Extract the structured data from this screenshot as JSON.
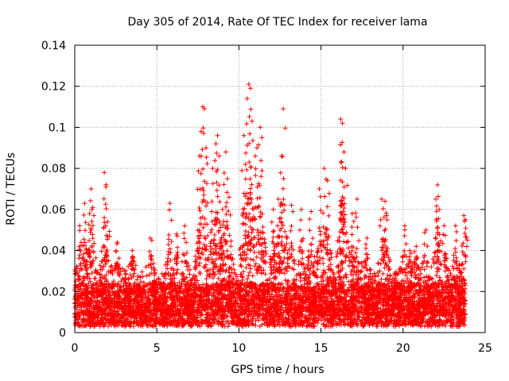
{
  "chart_data": {
    "type": "scatter",
    "title": "Day 305 of 2014, Rate Of TEC Index for receiver lama",
    "xlabel": "GPS time / hours",
    "ylabel": "ROTI / TECUs",
    "xlim": [
      0,
      25
    ],
    "ylim": [
      0,
      0.14
    ],
    "x_ticks": [
      "0",
      "5",
      "10",
      "15",
      "20",
      "25"
    ],
    "y_ticks": [
      "0",
      "0.02",
      "0.04",
      "0.06",
      "0.08",
      "0.1",
      "0.12",
      "0.14"
    ],
    "grid": true,
    "marker": "+",
    "color": "#ff0000",
    "series": [
      {
        "name": "ROTI",
        "description": "Dense cloud of per-satellite ROTI samples (~0.005–0.03 TECU/s) spanning 0–23.8 h; listed points are the distinctly visible outliers",
        "baseline_range": [
          0.004,
          0.03
        ],
        "x_range": [
          0,
          23.8
        ],
        "points": [
          [
            1.8,
            0.078
          ],
          [
            1.9,
            0.071
          ],
          [
            1.0,
            0.07
          ],
          [
            1.1,
            0.061
          ],
          [
            0.6,
            0.063
          ],
          [
            0.9,
            0.058
          ],
          [
            0.3,
            0.052
          ],
          [
            2.0,
            0.054
          ],
          [
            5.8,
            0.063
          ],
          [
            4.6,
            0.046
          ],
          [
            6.7,
            0.052
          ],
          [
            7.6,
            0.086
          ],
          [
            7.7,
            0.098
          ],
          [
            7.8,
            0.11
          ],
          [
            7.9,
            0.109
          ],
          [
            8.0,
            0.09
          ],
          [
            8.4,
            0.08
          ],
          [
            8.6,
            0.092
          ],
          [
            8.7,
            0.096
          ],
          [
            8.8,
            0.086
          ],
          [
            9.2,
            0.088
          ],
          [
            9.3,
            0.075
          ],
          [
            9.4,
            0.066
          ],
          [
            9.0,
            0.06
          ],
          [
            10.3,
            0.096
          ],
          [
            10.5,
            0.114
          ],
          [
            10.6,
            0.121
          ],
          [
            10.7,
            0.119
          ],
          [
            10.8,
            0.103
          ],
          [
            11.1,
            0.09
          ],
          [
            11.3,
            0.1
          ],
          [
            11.4,
            0.095
          ],
          [
            11.0,
            0.086
          ],
          [
            10.4,
            0.082
          ],
          [
            12.1,
            0.06
          ],
          [
            12.7,
            0.109
          ],
          [
            12.6,
            0.086
          ],
          [
            12.4,
            0.065
          ],
          [
            13.2,
            0.062
          ],
          [
            13.8,
            0.06
          ],
          [
            14.4,
            0.059
          ],
          [
            14.9,
            0.07
          ],
          [
            15.2,
            0.08
          ],
          [
            15.4,
            0.074
          ],
          [
            16.2,
            0.104
          ],
          [
            16.3,
            0.102
          ],
          [
            16.4,
            0.088
          ],
          [
            16.5,
            0.08
          ],
          [
            16.2,
            0.064
          ],
          [
            16.9,
            0.058
          ],
          [
            17.2,
            0.065
          ],
          [
            18.7,
            0.065
          ],
          [
            18.9,
            0.064
          ],
          [
            19.0,
            0.057
          ],
          [
            20.1,
            0.052
          ],
          [
            20.8,
            0.042
          ],
          [
            21.4,
            0.05
          ],
          [
            22.1,
            0.072
          ],
          [
            22.0,
            0.065
          ],
          [
            22.2,
            0.06
          ],
          [
            22.5,
            0.052
          ],
          [
            23.2,
            0.052
          ],
          [
            23.7,
            0.057
          ],
          [
            23.8,
            0.055
          ],
          [
            2.6,
            0.044
          ],
          [
            3.5,
            0.04
          ],
          [
            6.2,
            0.048
          ],
          [
            12.9,
            0.047
          ],
          [
            17.8,
            0.046
          ],
          [
            20.4,
            0.04
          ]
        ]
      }
    ]
  }
}
